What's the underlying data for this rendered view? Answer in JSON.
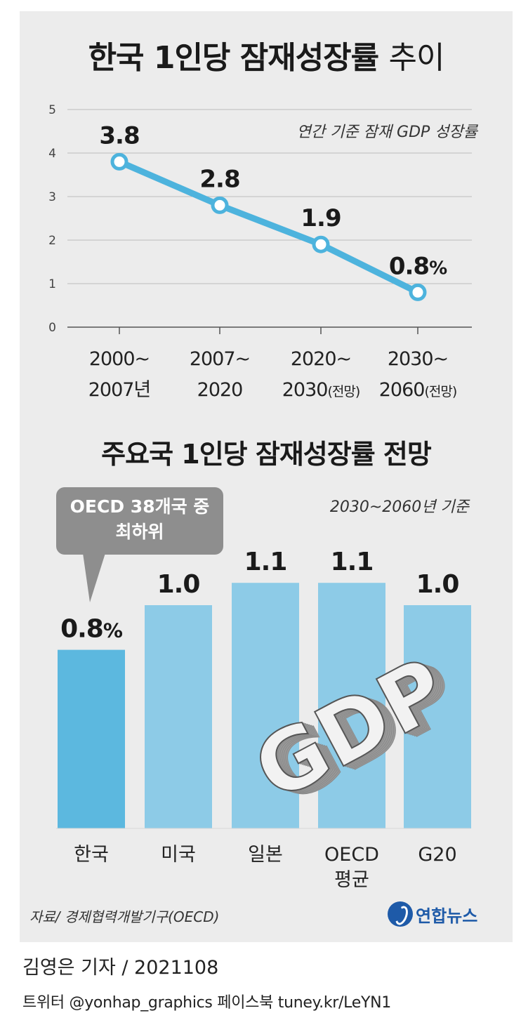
{
  "title": "한국 1인당 잠재성장률",
  "title_suffix": "추이",
  "line_chart": {
    "unit_note": "연간 기준 잠재 GDP 성장률"
  },
  "bar_chart": {
    "title": "주요국 1인당 잠재성장률 전망",
    "unit_note": "2030~2060년 기준",
    "callout": [
      "OECD 38개국 중",
      "최하위"
    ]
  },
  "source": "자료/ 경제협력개발기구(OECD)",
  "logo_text": "연합뉴스",
  "credit": "김영은 기자 / 2021108",
  "social": "트위터 @yonhap_graphics  페이스북 tuney.kr/LeYN1",
  "colors": {
    "line": "#4db3dd",
    "bar_korea": "#5cb8df",
    "bar_other": "#8dcbe7",
    "panel": "#ececec",
    "callout": "#8e8e8e"
  },
  "chart_data": [
    {
      "type": "line",
      "categories": [
        [
          "2000~",
          "2007년"
        ],
        [
          "2007~",
          "2020"
        ],
        [
          "2020~",
          "2030(전망)"
        ],
        [
          "2030~",
          "2060(전망)"
        ]
      ],
      "values": [
        3.8,
        2.8,
        1.9,
        0.8
      ],
      "data_labels": [
        "3.8",
        "2.8",
        "1.9",
        "0.8%"
      ],
      "ylim": [
        0,
        5
      ],
      "yticks": [
        "0",
        "1",
        "2",
        "3",
        "4",
        "5"
      ],
      "grid": true
    },
    {
      "type": "bar",
      "categories": [
        [
          "한국"
        ],
        [
          "미국"
        ],
        [
          "일본"
        ],
        [
          "OECD",
          "평균"
        ],
        [
          "G20"
        ]
      ],
      "values": [
        0.8,
        1.0,
        1.1,
        1.1,
        1.0
      ],
      "data_labels": [
        "0.8%",
        "1.0",
        "1.1",
        "1.1",
        "1.0"
      ],
      "illustration_text": "GDP"
    }
  ]
}
